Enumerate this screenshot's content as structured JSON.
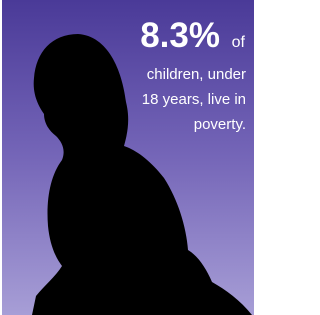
{
  "stat": {
    "figure": "8.3%",
    "suffix": "of",
    "lines": [
      "children, under",
      "18 years, live in",
      "poverty."
    ]
  }
}
